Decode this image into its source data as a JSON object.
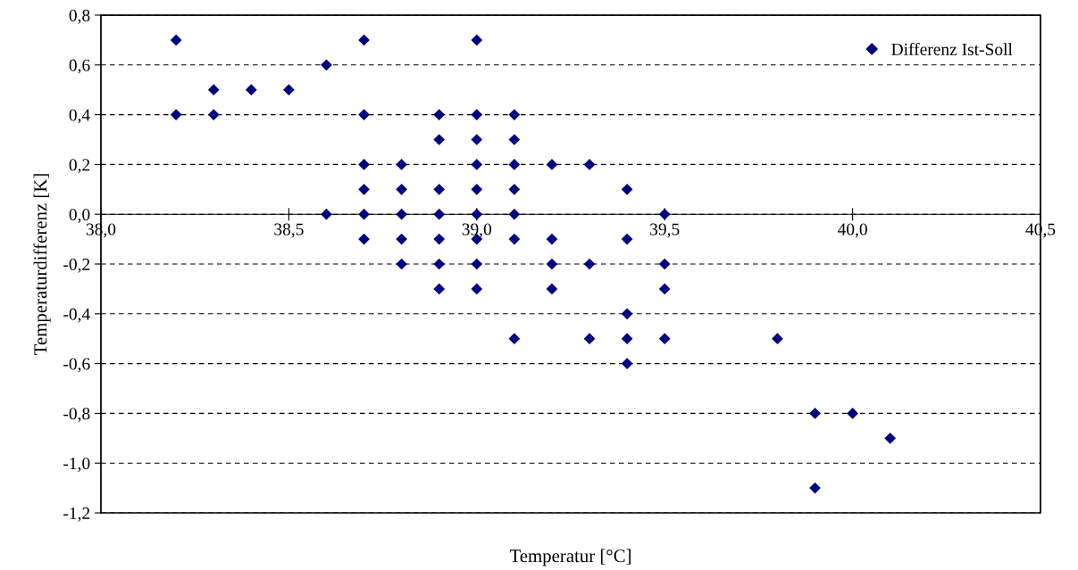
{
  "chart_data": {
    "type": "scatter",
    "xlabel": "Temperatur [°C]",
    "ylabel": "Temperaturdifferenz [K]",
    "series": [
      {
        "name": "Differenz Ist-Soll",
        "color": "#000080",
        "x": [
          38.2,
          38.2,
          38.3,
          38.3,
          38.4,
          38.5,
          38.6,
          38.6,
          38.7,
          38.7,
          38.7,
          38.7,
          38.7,
          38.7,
          38.8,
          38.8,
          38.8,
          38.8,
          38.8,
          38.9,
          38.9,
          38.9,
          38.9,
          38.9,
          38.9,
          38.9,
          39.0,
          39.0,
          39.0,
          39.0,
          39.0,
          39.0,
          39.0,
          39.0,
          39.0,
          39.1,
          39.1,
          39.1,
          39.1,
          39.1,
          39.1,
          39.1,
          39.2,
          39.2,
          39.2,
          39.2,
          39.3,
          39.3,
          39.3,
          39.4,
          39.4,
          39.4,
          39.4,
          39.4,
          39.5,
          39.5,
          39.5,
          39.5,
          39.8,
          39.9,
          39.9,
          40.0,
          40.1
        ],
        "values": [
          0.7,
          0.4,
          0.5,
          0.4,
          0.5,
          0.5,
          0.6,
          0.0,
          0.7,
          0.4,
          0.2,
          0.1,
          0.0,
          -0.1,
          0.2,
          0.1,
          0.0,
          -0.1,
          -0.2,
          0.4,
          0.3,
          0.1,
          0.0,
          -0.1,
          -0.2,
          -0.3,
          0.7,
          0.4,
          0.3,
          0.2,
          0.1,
          0.0,
          -0.1,
          -0.2,
          -0.3,
          0.4,
          0.3,
          0.2,
          0.1,
          0.0,
          -0.1,
          -0.5,
          0.2,
          -0.1,
          -0.2,
          -0.3,
          0.2,
          -0.2,
          -0.5,
          0.1,
          -0.1,
          -0.4,
          -0.5,
          -0.6,
          0.0,
          -0.2,
          -0.3,
          -0.5,
          -0.5,
          -0.8,
          -1.1,
          -0.8,
          -0.9
        ]
      }
    ],
    "xlim": [
      38.0,
      40.5
    ],
    "xticks": [
      {
        "value": 38.0,
        "label": "38,0"
      },
      {
        "value": 38.5,
        "label": "38,5"
      },
      {
        "value": 39.0,
        "label": "39,0"
      },
      {
        "value": 39.5,
        "label": "39,5"
      },
      {
        "value": 40.0,
        "label": "40,0"
      },
      {
        "value": 40.5,
        "label": "40,5"
      }
    ],
    "ylim": [
      -1.2,
      0.8
    ],
    "yticks": [
      {
        "value": -1.2,
        "label": "-1,2"
      },
      {
        "value": -1.0,
        "label": "-1,0"
      },
      {
        "value": -0.8,
        "label": "-0,8"
      },
      {
        "value": -0.6,
        "label": "-0,6"
      },
      {
        "value": -0.4,
        "label": "-0,4"
      },
      {
        "value": -0.2,
        "label": "-0,2"
      },
      {
        "value": 0.0,
        "label": "0,0"
      },
      {
        "value": 0.2,
        "label": "0,2"
      },
      {
        "value": 0.4,
        "label": "0,4"
      },
      {
        "value": 0.6,
        "label": "0,6"
      },
      {
        "value": 0.8,
        "label": "0,8"
      }
    ],
    "grid": "y",
    "legend": "top right",
    "marker": "diamond"
  }
}
